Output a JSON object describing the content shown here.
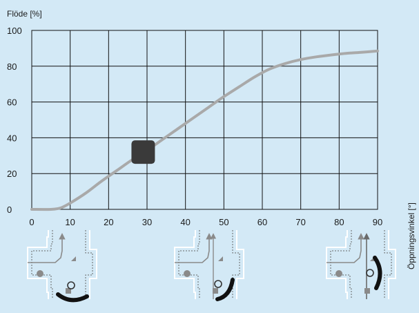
{
  "chart_data": {
    "type": "line",
    "ylabel": "Flöde [%]",
    "xlabel": "Öppningsvinkel [°]",
    "xlim": [
      0,
      90
    ],
    "ylim": [
      0,
      100
    ],
    "x_ticks": [
      "0",
      "10",
      "20",
      "30",
      "40",
      "50",
      "60",
      "70",
      "80",
      "90"
    ],
    "y_ticks": [
      "0",
      "20",
      "40",
      "60",
      "80",
      "100"
    ],
    "grid": true,
    "series": [
      {
        "color": "#a9a9a9",
        "x": [
          0,
          5,
          7,
          8,
          10,
          14,
          18,
          22,
          26,
          30,
          34,
          38,
          42,
          46,
          50,
          54,
          58,
          62,
          66,
          70,
          74,
          78,
          82,
          86,
          90
        ],
        "y": [
          0,
          0,
          0.5,
          1.2,
          3.5,
          9,
          15.5,
          21.5,
          27.5,
          33,
          39,
          45,
          51,
          57,
          63,
          68.5,
          74,
          78.5,
          81.5,
          83.7,
          85.2,
          86.3,
          87.2,
          87.8,
          88.5
        ]
      }
    ],
    "marker": {
      "x": 29,
      "y": 32,
      "color": "#3a3a3a",
      "shape": "rounded-square"
    },
    "valve_illustrations": [
      {
        "position_deg": 10,
        "state": "closed"
      },
      {
        "position_deg": 50,
        "state": "partially-open"
      },
      {
        "position_deg": 90,
        "state": "open"
      }
    ]
  }
}
